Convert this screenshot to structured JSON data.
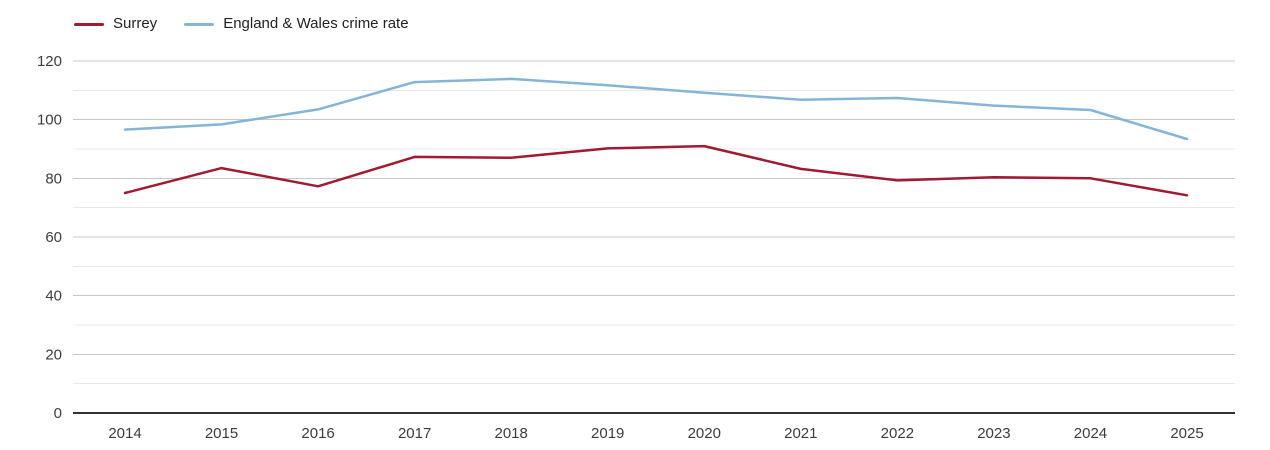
{
  "legend": {
    "position": "top-left"
  },
  "chart_data": {
    "type": "line",
    "title": "",
    "xlabel": "",
    "ylabel": "",
    "x": [
      2014,
      2015,
      2016,
      2017,
      2018,
      2019,
      2020,
      2021,
      2022,
      2023,
      2024,
      2025
    ],
    "series": [
      {
        "name": "Surrey",
        "color": "#9e1b32",
        "values": [
          75.0,
          83.5,
          77.3,
          87.3,
          87.0,
          90.2,
          91.0,
          83.2,
          79.3,
          80.4,
          80.0,
          74.2
        ]
      },
      {
        "name": "England & Wales crime rate",
        "color": "#85b5d6",
        "values": [
          96.6,
          98.4,
          103.5,
          112.8,
          113.9,
          111.7,
          109.2,
          106.8,
          107.4,
          104.8,
          103.3,
          93.4
        ]
      }
    ],
    "ylim": [
      0,
      120
    ],
    "yticks": [
      0,
      20,
      40,
      60,
      80,
      100,
      120
    ],
    "minor_grid_step": 10,
    "grid": "horizontal",
    "legend_position": "top-left"
  },
  "colors": {
    "background": "#ffffff",
    "axis_line": "#333333",
    "major_grid": "#c7c7c7",
    "minor_grid": "#e8e8e8",
    "tick_label": "#3c3c3c",
    "legend_text": "#222222"
  }
}
